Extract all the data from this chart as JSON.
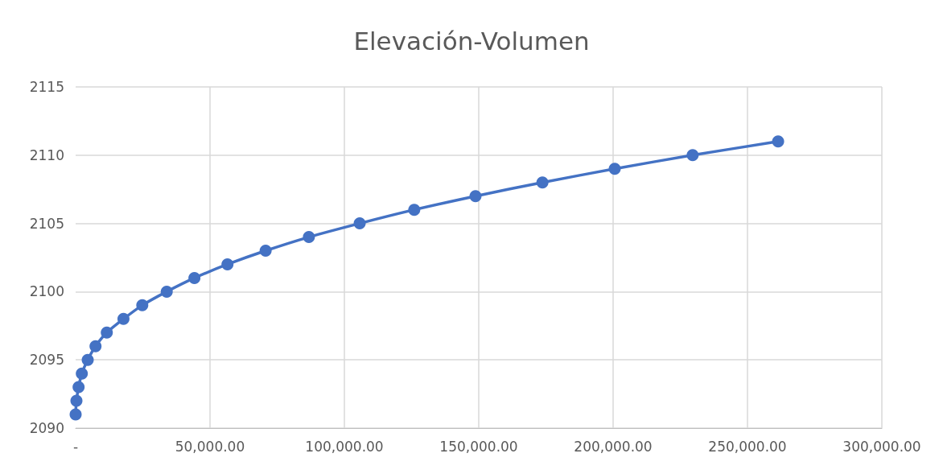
{
  "chart_data": {
    "type": "line",
    "title": "Elevación-Volumen",
    "x": [
      0,
      300,
      1100,
      2300,
      4500,
      7400,
      11600,
      17800,
      24800,
      33900,
      44200,
      56500,
      70700,
      86800,
      105700,
      126000,
      148800,
      173700,
      200600,
      229600,
      261400
    ],
    "values": [
      2091,
      2092,
      2093,
      2094,
      2095,
      2096,
      2097,
      2098,
      2099,
      2100,
      2101,
      2102,
      2103,
      2104,
      2105,
      2106,
      2107,
      2108,
      2109,
      2110,
      2111
    ],
    "color": "#4472c4",
    "marker": "circle",
    "line_style": "solid",
    "xlim": [
      0,
      300000
    ],
    "xticks": [
      {
        "value": 0,
        "label": "-"
      },
      {
        "value": 50000,
        "label": "50,000.00"
      },
      {
        "value": 100000,
        "label": "100,000.00"
      },
      {
        "value": 150000,
        "label": "150,000.00"
      },
      {
        "value": 200000,
        "label": "200,000.00"
      },
      {
        "value": 250000,
        "label": "250,000.00"
      },
      {
        "value": 300000,
        "label": "300,000.00"
      }
    ],
    "ylim": [
      2090,
      2115
    ],
    "yticks": [
      2090,
      2095,
      2100,
      2105,
      2110,
      2115
    ],
    "grid": true
  }
}
